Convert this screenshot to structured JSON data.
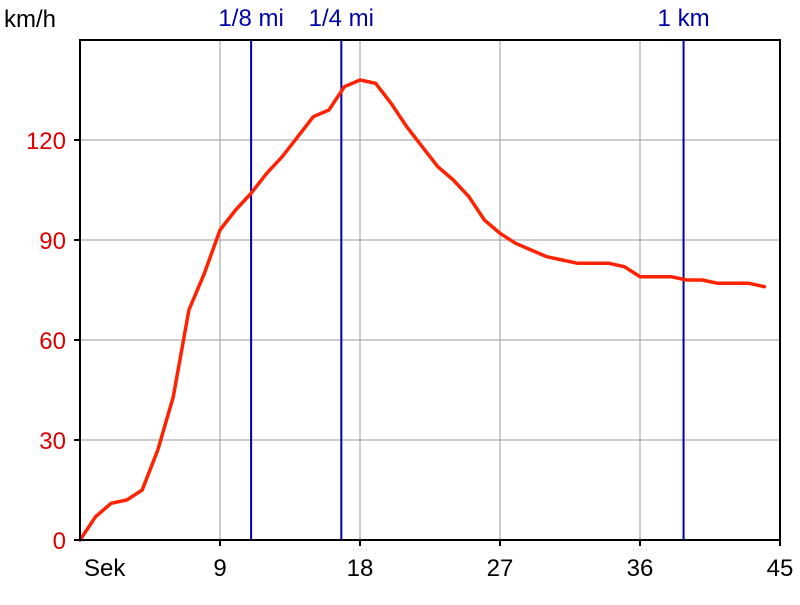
{
  "chart_data": {
    "type": "line",
    "ylabel": "km/h",
    "x_axis_start_label": "Sek",
    "x_ticks": [
      9,
      18,
      27,
      36,
      45
    ],
    "y_ticks": [
      0,
      30,
      60,
      90,
      120
    ],
    "xlim": [
      0,
      45
    ],
    "ylim": [
      0,
      150
    ],
    "grid": true,
    "colors": {
      "series": "#ff2200",
      "y_tick_labels": "#dd0000",
      "markers": "#0000aa",
      "grid": "#999999",
      "axes": "#000000"
    },
    "series": [
      {
        "x": [
          0,
          1,
          2,
          3,
          4,
          5,
          6,
          7,
          8,
          9,
          10,
          11,
          12,
          13,
          14,
          15,
          16,
          17,
          18,
          19,
          20,
          21,
          22,
          23,
          24,
          25,
          26,
          27,
          28,
          29,
          30,
          31,
          32,
          33,
          34,
          35,
          36,
          37,
          38,
          39,
          40,
          41,
          42,
          43,
          44
        ],
        "y": [
          0,
          7,
          11,
          12,
          15,
          27,
          43,
          69,
          80,
          93,
          99,
          104,
          110,
          115,
          121,
          127,
          129,
          136,
          138,
          137,
          131,
          124,
          118,
          112,
          108,
          103,
          96,
          92,
          89,
          87,
          85,
          84,
          83,
          83,
          83,
          82,
          79,
          79,
          79,
          78,
          78,
          77,
          77,
          77,
          76
        ]
      }
    ],
    "distance_markers": [
      {
        "label": "1/8 mi",
        "x": 11
      },
      {
        "label": "1/4 mi",
        "x": 16.8
      },
      {
        "label": "1 km",
        "x": 38.8
      }
    ]
  }
}
